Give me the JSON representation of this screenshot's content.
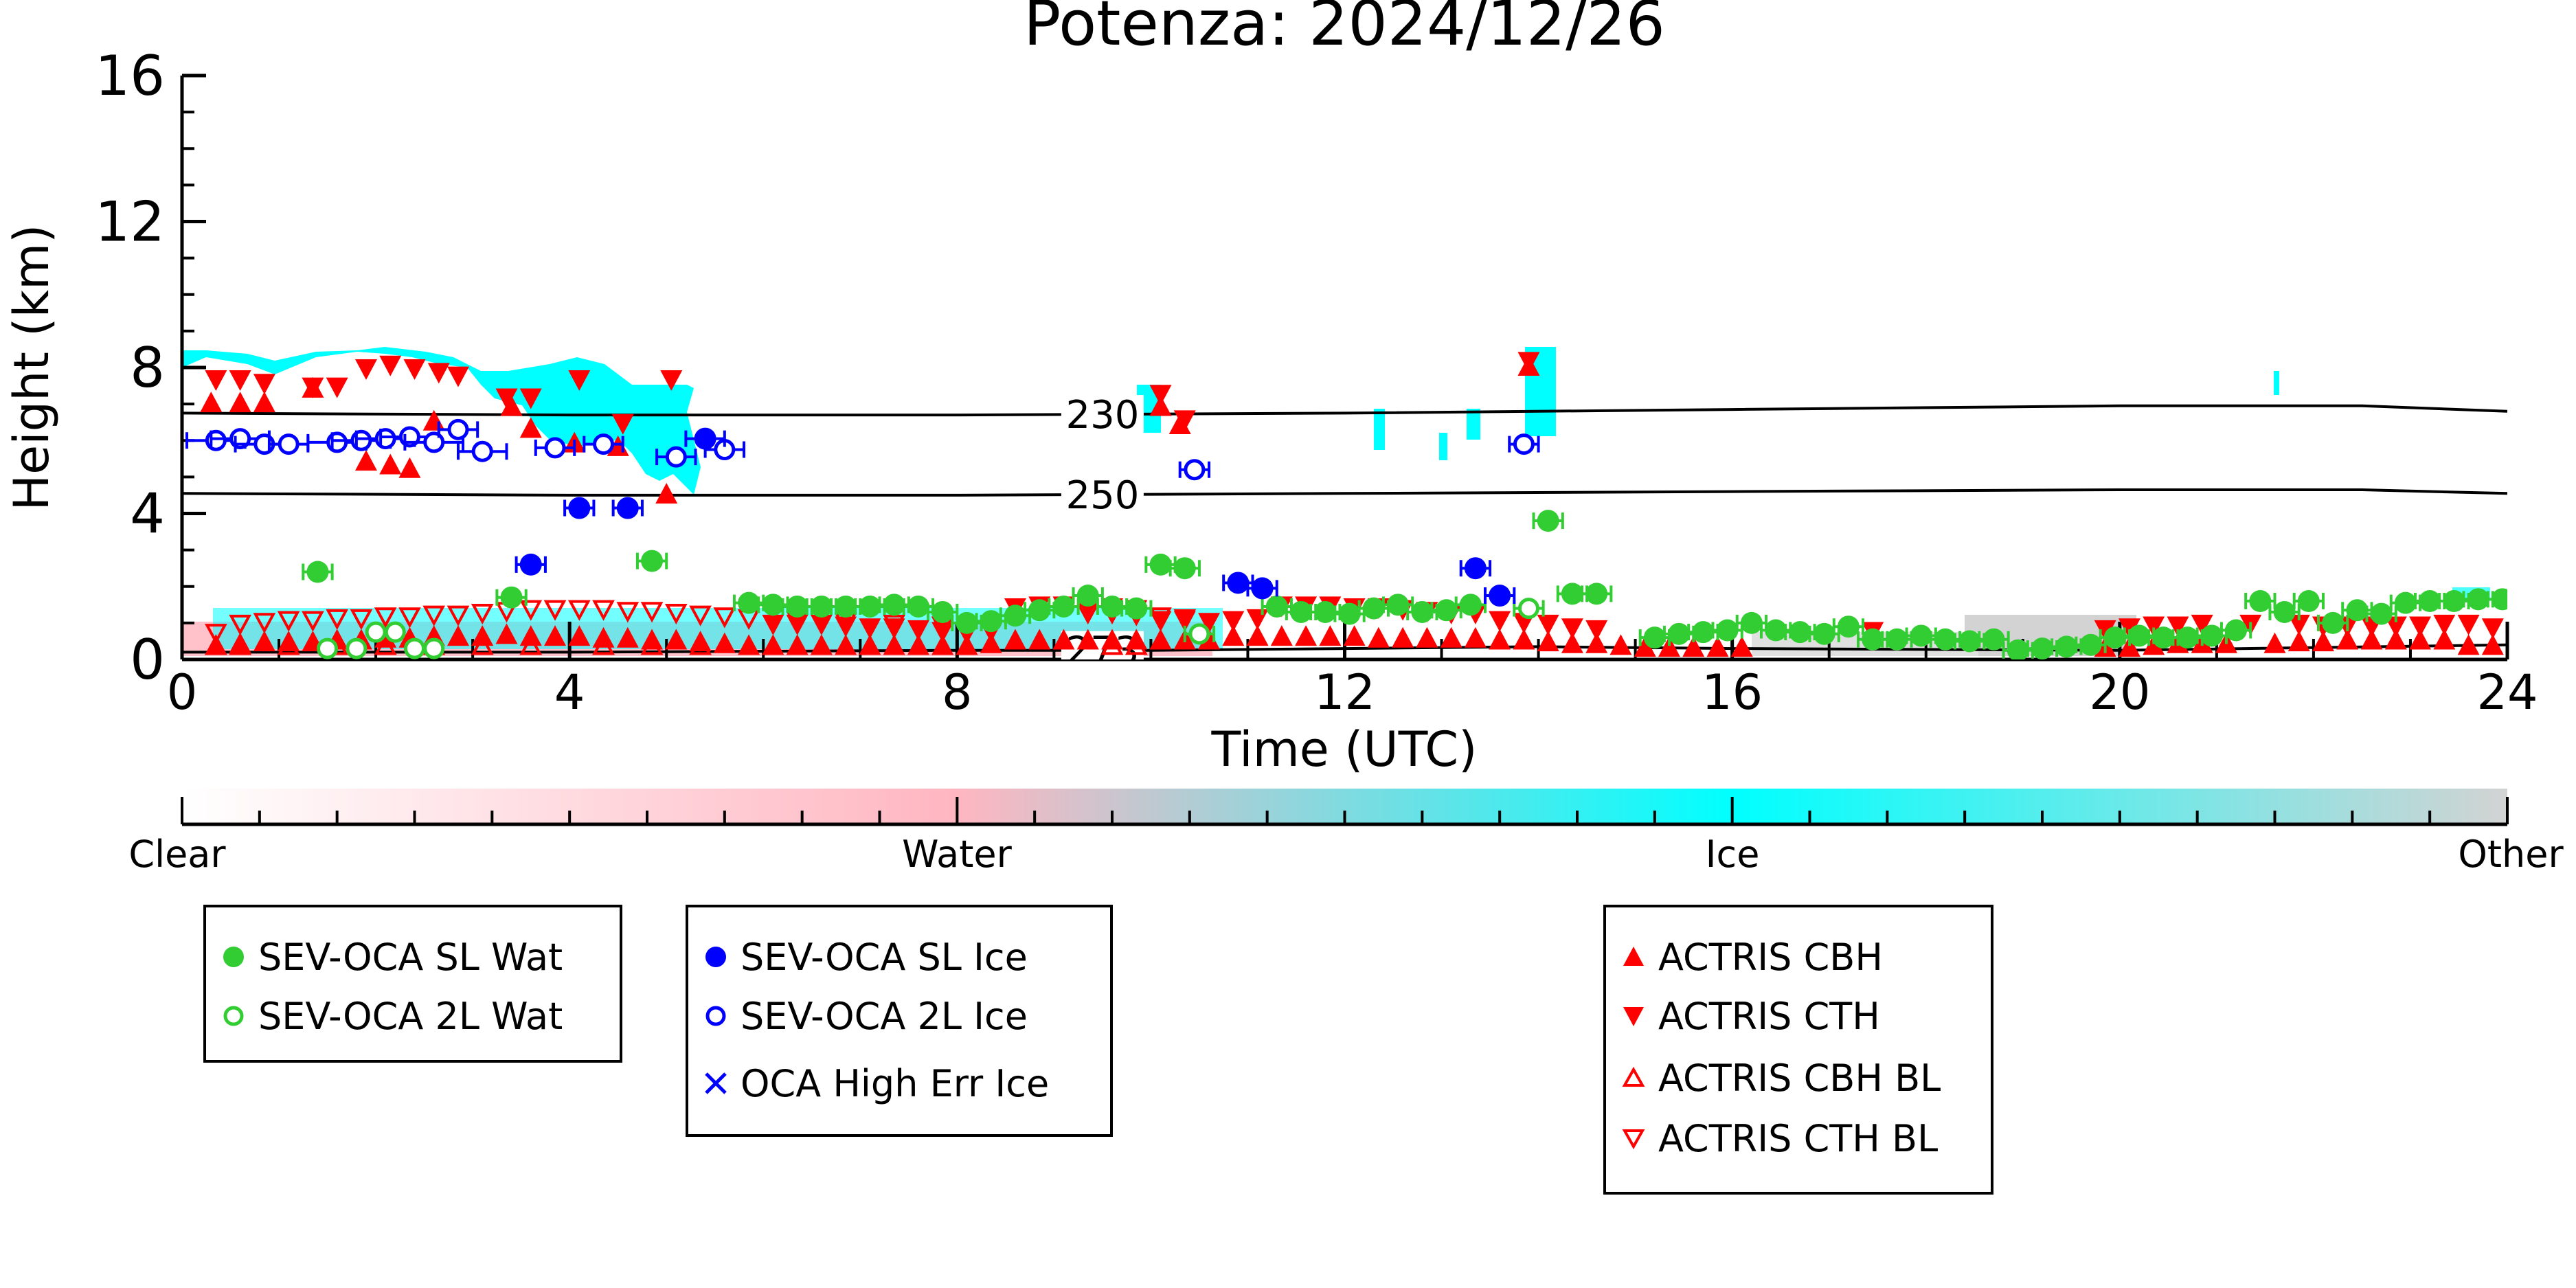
{
  "chart_data": {
    "type": "scatter",
    "title": "Potenza: 2024/12/26",
    "xlabel": "Time (UTC)",
    "ylabel": "Height (km)",
    "xlim": [
      0,
      24
    ],
    "ylim": [
      0,
      16
    ],
    "x_ticks": [
      "0",
      "4",
      "8",
      "12",
      "16",
      "20",
      "24"
    ],
    "y_ticks": [
      "0",
      "4",
      "8",
      "12",
      "16"
    ],
    "colorbar": {
      "labels": [
        "Clear",
        "Water",
        "Ice",
        "Other"
      ],
      "colors": [
        "#ffffff",
        "#ffb6c1",
        "#00ffff",
        "#d3d3d3"
      ]
    },
    "contours": [
      {
        "label": "230",
        "points": [
          [
            0,
            6.75
          ],
          [
            4,
            6.7
          ],
          [
            8,
            6.7
          ],
          [
            12,
            6.75
          ],
          [
            16,
            6.85
          ],
          [
            20,
            6.95
          ],
          [
            22.5,
            6.95
          ],
          [
            24,
            6.8
          ]
        ]
      },
      {
        "label": "250",
        "points": [
          [
            0,
            4.55
          ],
          [
            4,
            4.5
          ],
          [
            8,
            4.5
          ],
          [
            12,
            4.55
          ],
          [
            16,
            4.6
          ],
          [
            20,
            4.65
          ],
          [
            22.5,
            4.65
          ],
          [
            24,
            4.55
          ]
        ]
      },
      {
        "label": "273",
        "points": [
          [
            0,
            0.2
          ],
          [
            4,
            0.2
          ],
          [
            8,
            0.25
          ],
          [
            10,
            0.25
          ],
          [
            12,
            0.3
          ],
          [
            14,
            0.35
          ],
          [
            16,
            0.3
          ],
          [
            20,
            0.25
          ],
          [
            24,
            0.4
          ]
        ]
      }
    ],
    "series": [
      {
        "name": "SEV-OCA SL Wat",
        "color": "#32cd32",
        "marker": "filled-circle",
        "x": [
          1.4,
          3.4,
          4.85,
          5.85,
          6.1,
          6.35,
          6.6,
          6.85,
          7.1,
          7.35,
          7.6,
          7.85,
          8.1,
          8.35,
          8.6,
          8.85,
          9.1,
          9.35,
          9.6,
          9.85,
          10.1,
          10.35,
          11.3,
          11.55,
          11.8,
          12.05,
          12.3,
          12.55,
          12.8,
          13.05,
          13.3,
          14.1,
          14.35,
          14.6,
          15.2,
          15.45,
          15.7,
          15.95,
          16.2,
          16.45,
          16.7,
          16.95,
          17.2,
          17.45,
          17.7,
          17.95,
          18.2,
          18.45,
          18.7,
          18.95,
          19.2,
          19.45,
          19.7,
          19.95,
          20.2,
          20.45,
          20.7,
          20.95,
          21.2,
          21.45,
          21.7,
          21.95,
          22.2,
          22.45,
          22.7,
          22.95,
          23.2,
          23.45,
          23.7,
          23.95
        ],
        "y": [
          2.4,
          1.7,
          2.7,
          1.55,
          1.5,
          1.45,
          1.45,
          1.45,
          1.45,
          1.5,
          1.45,
          1.3,
          1.0,
          1.05,
          1.2,
          1.35,
          1.45,
          1.75,
          1.45,
          1.4,
          2.6,
          2.5,
          1.45,
          1.3,
          1.3,
          1.25,
          1.4,
          1.5,
          1.3,
          1.35,
          1.5,
          3.8,
          1.8,
          1.8,
          0.6,
          0.7,
          0.75,
          0.8,
          1.0,
          0.8,
          0.75,
          0.7,
          0.9,
          0.55,
          0.55,
          0.65,
          0.55,
          0.5,
          0.55,
          0.25,
          0.3,
          0.35,
          0.4,
          0.6,
          0.65,
          0.6,
          0.6,
          0.65,
          0.8,
          1.6,
          1.3,
          1.6,
          1.0,
          1.35,
          1.25,
          1.55,
          1.6,
          1.6,
          1.65,
          1.65
        ],
        "x_err": [
          0.15,
          0.15,
          0.15,
          0.15,
          0.15,
          0.15,
          0.15,
          0.15,
          0.15,
          0.15,
          0.15,
          0.15,
          0.15,
          0.15,
          0.15,
          0.15,
          0.15,
          0.15,
          0.15,
          0.15,
          0.15,
          0.15,
          0.15,
          0.15,
          0.15,
          0.15,
          0.15,
          0.15,
          0.15,
          0.15,
          0.15,
          0.15,
          0.15,
          0.15,
          0.15,
          0.15,
          0.15,
          0.15,
          0.15,
          0.15,
          0.15,
          0.15,
          0.15,
          0.15,
          0.15,
          0.15,
          0.15,
          0.15,
          0.15,
          0.15,
          0.15,
          0.15,
          0.15,
          0.15,
          0.15,
          0.15,
          0.15,
          0.15,
          0.15,
          0.15,
          0.15,
          0.15,
          0.15,
          0.15,
          0.15,
          0.15,
          0.15,
          0.15,
          0.15,
          0.15
        ]
      },
      {
        "name": "SEV-OCA 2L Wat",
        "color": "#32cd32",
        "marker": "open-circle",
        "x": [
          1.5,
          1.8,
          2.0,
          2.2,
          2.4,
          2.6,
          10.5,
          13.9
        ],
        "y": [
          0.3,
          0.3,
          0.75,
          0.75,
          0.3,
          0.3,
          0.7,
          1.4
        ],
        "x_err": [
          0,
          0,
          0,
          0,
          0,
          0,
          0.15,
          0.15
        ]
      },
      {
        "name": "SEV-OCA SL Ice",
        "color": "#0000ff",
        "marker": "filled-circle",
        "x": [
          3.6,
          4.1,
          4.6,
          5.4,
          10.9,
          11.15,
          13.35,
          13.6
        ],
        "y": [
          2.6,
          4.15,
          4.15,
          6.05,
          2.1,
          1.95,
          2.5,
          1.75
        ],
        "x_err": [
          0.15,
          0.15,
          0.15,
          0.2,
          0.15,
          0.15,
          0.15,
          0.15
        ]
      },
      {
        "name": "SEV-OCA 2L Ice",
        "color": "#0000ff",
        "marker": "open-circle",
        "x": [
          0.35,
          0.6,
          0.85,
          1.1,
          1.6,
          1.85,
          2.1,
          2.35,
          2.6,
          2.85,
          3.1,
          3.85,
          4.35,
          5.1,
          5.6,
          10.45,
          13.85
        ],
        "y": [
          6.0,
          6.05,
          5.9,
          5.9,
          5.95,
          6.0,
          6.05,
          6.1,
          5.95,
          6.3,
          5.7,
          5.8,
          5.9,
          5.55,
          5.75,
          5.2,
          5.9
        ],
        "x_err": [
          0.3,
          0.3,
          0.3,
          0.2,
          0.3,
          0.3,
          0.3,
          0.3,
          0.3,
          0.2,
          0.25,
          0.2,
          0.2,
          0.2,
          0.2,
          0.15,
          0.15
        ]
      },
      {
        "name": "OCA High Err Ice",
        "color": "#0000ff",
        "marker": "x",
        "x": [],
        "y": []
      },
      {
        "name": "ACTRIS CBH",
        "color": "#ff0000",
        "marker": "filled-triangle-up",
        "x": [
          0.3,
          0.6,
          0.85,
          1.35,
          1.9,
          2.15,
          2.35,
          2.6,
          3.4,
          3.6,
          4.05,
          4.5,
          5.0,
          10.1,
          10.3,
          13.9,
          0.35,
          0.6,
          0.85,
          1.1,
          1.35,
          1.6,
          1.85,
          2.1,
          2.35,
          2.6,
          2.85,
          3.1,
          3.35,
          3.6,
          3.85,
          4.1,
          4.35,
          4.6,
          4.85,
          5.1,
          5.35,
          5.6,
          5.85,
          6.1,
          6.35,
          6.6,
          6.85,
          7.1,
          7.35,
          7.6,
          7.85,
          8.1,
          8.35,
          8.6,
          8.85,
          9.1,
          9.35,
          9.6,
          9.85,
          10.1,
          10.35,
          10.6,
          10.85,
          11.1,
          11.35,
          11.6,
          11.85,
          12.1,
          12.35,
          12.6,
          12.85,
          13.1,
          13.35,
          13.6,
          13.85,
          14.1,
          14.35,
          14.6,
          14.85,
          15.1,
          15.35,
          15.6,
          15.85,
          16.1,
          19.85,
          20.1,
          20.35,
          20.6,
          20.85,
          21.1,
          21.6,
          21.85,
          22.1,
          22.35,
          22.6,
          22.85,
          23.1,
          23.35,
          23.6,
          23.85
        ],
        "y": [
          7.0,
          7.0,
          7.0,
          7.4,
          5.4,
          5.3,
          5.2,
          6.5,
          6.9,
          6.3,
          5.9,
          5.8,
          4.5,
          6.9,
          6.4,
          8.0,
          0.35,
          0.4,
          0.45,
          0.45,
          0.45,
          0.5,
          0.5,
          0.55,
          0.55,
          0.6,
          0.6,
          0.6,
          0.65,
          0.6,
          0.6,
          0.6,
          0.55,
          0.55,
          0.5,
          0.5,
          0.45,
          0.4,
          0.35,
          0.35,
          0.35,
          0.35,
          0.35,
          0.35,
          0.35,
          0.35,
          0.35,
          0.35,
          0.4,
          0.5,
          0.5,
          0.5,
          0.5,
          0.5,
          0.5,
          0.5,
          0.5,
          0.5,
          0.6,
          0.6,
          0.6,
          0.6,
          0.6,
          0.6,
          0.55,
          0.55,
          0.55,
          0.55,
          0.55,
          0.5,
          0.5,
          0.45,
          0.4,
          0.4,
          0.35,
          0.3,
          0.3,
          0.3,
          0.3,
          0.3,
          0.3,
          0.3,
          0.35,
          0.4,
          0.4,
          0.4,
          0.4,
          0.45,
          0.45,
          0.5,
          0.5,
          0.5,
          0.5,
          0.5,
          0.35,
          0.35
        ]
      },
      {
        "name": "ACTRIS CTH",
        "color": "#ff0000",
        "marker": "filled-triangle-down",
        "x": [
          0.35,
          0.6,
          0.85,
          1.35,
          1.6,
          1.9,
          2.15,
          2.4,
          2.65,
          2.85,
          3.35,
          3.6,
          4.1,
          4.55,
          5.05,
          10.1,
          10.35,
          13.9,
          6.1,
          6.35,
          6.6,
          6.85,
          7.1,
          7.35,
          7.6,
          7.85,
          8.1,
          8.35,
          8.6,
          8.85,
          9.1,
          9.35,
          9.6,
          9.85,
          10.1,
          10.35,
          10.6,
          10.85,
          11.1,
          11.35,
          11.6,
          11.85,
          12.1,
          12.35,
          12.6,
          12.85,
          13.1,
          13.35,
          13.6,
          13.85,
          14.1,
          14.35,
          14.6,
          17.45,
          19.85,
          20.1,
          20.35,
          20.6,
          20.85,
          21.35,
          21.85,
          22.1,
          22.35,
          22.6,
          22.85,
          23.1,
          23.35,
          23.6,
          23.85
        ],
        "y": [
          7.7,
          7.7,
          7.6,
          7.5,
          7.5,
          8.0,
          8.1,
          8.0,
          7.9,
          7.8,
          7.2,
          7.2,
          7.7,
          6.5,
          7.7,
          7.3,
          6.6,
          8.2,
          1.0,
          1.0,
          1.0,
          0.95,
          0.9,
          0.9,
          0.85,
          0.8,
          0.75,
          0.8,
          1.45,
          1.5,
          1.5,
          1.45,
          1.45,
          1.4,
          1.1,
          1.1,
          1.05,
          1.1,
          1.15,
          1.5,
          1.5,
          1.5,
          1.45,
          1.45,
          1.4,
          1.35,
          1.3,
          1.3,
          1.1,
          1.05,
          1.0,
          0.9,
          0.85,
          0.8,
          0.85,
          0.9,
          0.95,
          0.95,
          1.0,
          1.0,
          1.0,
          0.95,
          0.95,
          0.95,
          0.95,
          0.95,
          1.0,
          1.0,
          0.9
        ]
      },
      {
        "name": "ACTRIS CBH BL",
        "color": "#ff0000",
        "marker": "open-triangle-up",
        "x": [
          0.35,
          0.6,
          1.1,
          1.6,
          2.1,
          2.6,
          3.1,
          3.6,
          4.35,
          4.85,
          5.35,
          9.6,
          9.85
        ],
        "y": [
          0.35,
          0.35,
          0.35,
          0.35,
          0.35,
          0.35,
          0.35,
          0.35,
          0.35,
          0.35,
          0.35,
          0.35,
          0.35
        ]
      },
      {
        "name": "ACTRIS CTH BL",
        "color": "#ff0000",
        "marker": "open-triangle-down",
        "x": [
          0.35,
          0.6,
          0.85,
          1.1,
          1.35,
          1.6,
          1.85,
          2.1,
          2.35,
          2.6,
          2.85,
          3.1,
          3.35,
          3.6,
          3.85,
          4.1,
          4.35,
          4.6,
          4.85,
          5.1,
          5.35,
          5.6,
          5.85,
          6.35,
          6.85,
          7.35,
          7.85,
          9.35,
          9.6,
          9.85,
          10.1,
          10.35
        ],
        "y": [
          0.75,
          1.0,
          1.05,
          1.1,
          1.1,
          1.15,
          1.15,
          1.2,
          1.2,
          1.25,
          1.25,
          1.3,
          1.35,
          1.4,
          1.4,
          1.4,
          1.4,
          1.35,
          1.35,
          1.3,
          1.25,
          1.2,
          1.15,
          1.1,
          1.05,
          1.0,
          0.95,
          1.3,
          1.3,
          1.25,
          1.2,
          1.15
        ]
      }
    ]
  },
  "legend_groups": [
    {
      "items": [
        {
          "label": "SEV-OCA SL Wat",
          "color": "#32cd32",
          "marker": "filled-circle"
        },
        {
          "label": "SEV-OCA 2L Wat",
          "color": "#32cd32",
          "marker": "open-circle"
        }
      ]
    },
    {
      "items": [
        {
          "label": "SEV-OCA SL Ice",
          "color": "#0000ff",
          "marker": "filled-circle"
        },
        {
          "label": "SEV-OCA 2L Ice",
          "color": "#0000ff",
          "marker": "open-circle"
        },
        {
          "label": "OCA High Err Ice",
          "color": "#0000ff",
          "marker": "x"
        }
      ]
    },
    {
      "items": [
        {
          "label": "ACTRIS CBH",
          "color": "#ff0000",
          "marker": "filled-triangle-up"
        },
        {
          "label": "ACTRIS CTH",
          "color": "#ff0000",
          "marker": "filled-triangle-down"
        },
        {
          "label": "ACTRIS CBH BL",
          "color": "#ff0000",
          "marker": "open-triangle-up"
        },
        {
          "label": "ACTRIS CTH BL",
          "color": "#ff0000",
          "marker": "open-triangle-down"
        }
      ]
    }
  ]
}
